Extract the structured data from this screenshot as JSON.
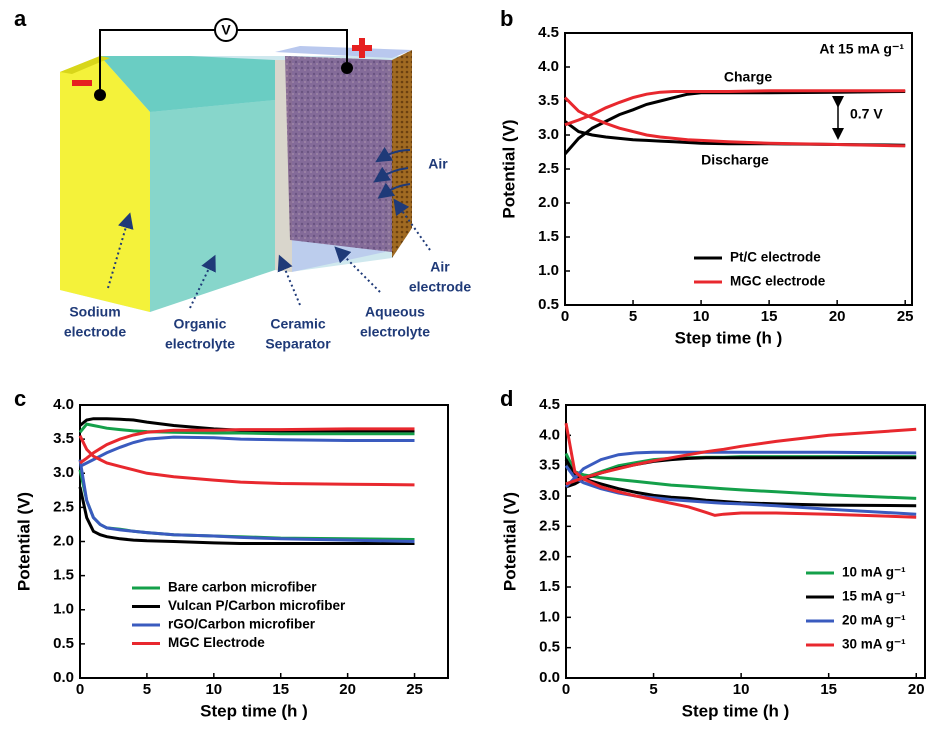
{
  "diagram": {
    "panel_label": "a",
    "voltmeter": "V",
    "labels": [
      {
        "lines": [
          "Sodium",
          "electrode"
        ]
      },
      {
        "lines": [
          "Organic",
          "electrolyte"
        ]
      },
      {
        "lines": [
          "Ceramic",
          "Separator"
        ]
      },
      {
        "lines": [
          "Aqueous",
          "electrolyte"
        ]
      },
      {
        "lines": [
          "Air",
          "electrode"
        ]
      },
      {
        "lines": [
          "Air"
        ]
      }
    ]
  },
  "chart_data": [
    {
      "type": "line",
      "panel_label": "b",
      "xlabel": "Step time (h )",
      "ylabel": "Potential (V)",
      "annotations": [
        "At 15 mA g⁻¹",
        "Charge",
        "Discharge",
        "0.7 V"
      ],
      "xlim": [
        0,
        25.5
      ],
      "xticks": [
        0,
        5,
        10,
        15,
        20,
        25
      ],
      "ylim": [
        0.5,
        4.5
      ],
      "yticks": [
        0.5,
        {
          "value": 1,
          "label": "1.0"
        },
        1.5,
        {
          "value": 2,
          "label": "2.0"
        },
        2.5,
        {
          "value": 3,
          "label": "3.0"
        },
        3.5,
        {
          "value": 4,
          "label": "4.0"
        },
        4.5
      ],
      "x": [
        0,
        1,
        2,
        3,
        4,
        5,
        6,
        7,
        8,
        9,
        10,
        12,
        15,
        20,
        25
      ],
      "series": [
        {
          "name": "Pt/C electrode",
          "color": "#000000",
          "values": [
            2.72,
            2.95,
            3.1,
            3.2,
            3.3,
            3.37,
            3.45,
            3.5,
            3.55,
            3.6,
            3.62,
            3.62,
            3.62,
            3.63,
            3.64
          ],
          "discharge": [
            3.2,
            3.05,
            3.0,
            2.97,
            2.95,
            2.93,
            2.92,
            2.91,
            2.9,
            2.89,
            2.88,
            2.87,
            2.87,
            2.86,
            2.85
          ]
        },
        {
          "name": "MGC electrode",
          "color": "#e8282e",
          "values": [
            3.15,
            3.22,
            3.3,
            3.4,
            3.48,
            3.55,
            3.6,
            3.63,
            3.64,
            3.64,
            3.64,
            3.64,
            3.65,
            3.65,
            3.65
          ],
          "discharge": [
            3.55,
            3.35,
            3.25,
            3.17,
            3.1,
            3.05,
            3.0,
            2.97,
            2.95,
            2.93,
            2.92,
            2.9,
            2.88,
            2.86,
            2.84
          ]
        }
      ]
    },
    {
      "type": "line",
      "panel_label": "c",
      "xlabel": "Step time (h )",
      "ylabel": "Potential (V)",
      "xlim": [
        0,
        27.5
      ],
      "xticks": [
        0,
        5,
        10,
        15,
        20,
        25
      ],
      "ylim": [
        0,
        4
      ],
      "yticks": [
        {
          "value": 0,
          "label": "0.0"
        },
        0.5,
        {
          "value": 1,
          "label": "1.0"
        },
        1.5,
        {
          "value": 2,
          "label": "2.0"
        },
        2.5,
        {
          "value": 3,
          "label": "3.0"
        },
        3.5,
        {
          "value": 4,
          "label": "4.0"
        }
      ],
      "x": [
        0,
        0.5,
        1,
        1.5,
        2,
        3,
        4,
        5,
        7,
        10,
        12,
        15,
        20,
        25
      ],
      "series": [
        {
          "name": "Bare carbon microfiber",
          "color": "#14a04a",
          "values": [
            3.6,
            3.72,
            3.7,
            3.68,
            3.66,
            3.64,
            3.62,
            3.61,
            3.6,
            3.59,
            3.59,
            3.58,
            3.58,
            3.58
          ],
          "discharge": [
            3.05,
            2.6,
            2.35,
            2.25,
            2.2,
            2.18,
            2.15,
            2.13,
            2.1,
            2.08,
            2.07,
            2.05,
            2.04,
            2.03
          ]
        },
        {
          "name": "Vulcan P/Carbon microfiber",
          "color": "#000000",
          "values": [
            3.7,
            3.78,
            3.8,
            3.8,
            3.8,
            3.79,
            3.78,
            3.75,
            3.7,
            3.65,
            3.63,
            3.62,
            3.62,
            3.62
          ],
          "discharge": [
            2.8,
            2.35,
            2.15,
            2.1,
            2.07,
            2.04,
            2.02,
            2.01,
            2.0,
            1.98,
            1.97,
            1.97,
            1.97,
            1.97
          ]
        },
        {
          "name": "rGO/Carbon microfiber",
          "color": "#3a5bbf",
          "values": [
            3.1,
            3.15,
            3.2,
            3.25,
            3.3,
            3.38,
            3.45,
            3.5,
            3.53,
            3.52,
            3.5,
            3.49,
            3.48,
            3.48
          ],
          "discharge": [
            3.2,
            2.6,
            2.35,
            2.25,
            2.2,
            2.17,
            2.15,
            2.13,
            2.1,
            2.08,
            2.06,
            2.04,
            2.02,
            2.0
          ]
        },
        {
          "name": "MGC Electrode",
          "color": "#e8282e",
          "values": [
            3.15,
            3.22,
            3.3,
            3.36,
            3.42,
            3.5,
            3.56,
            3.6,
            3.63,
            3.63,
            3.64,
            3.64,
            3.65,
            3.65
          ],
          "discharge": [
            3.55,
            3.35,
            3.25,
            3.2,
            3.15,
            3.1,
            3.05,
            3.0,
            2.95,
            2.9,
            2.87,
            2.85,
            2.84,
            2.83
          ]
        }
      ]
    },
    {
      "type": "line",
      "panel_label": "d",
      "xlabel": "Step time (h )",
      "ylabel": "Potential (V)",
      "xlim": [
        0,
        20.5
      ],
      "xticks": [
        0,
        5,
        10,
        15,
        20
      ],
      "ylim": [
        0,
        4.5
      ],
      "yticks": [
        {
          "value": 0,
          "label": "0.0"
        },
        0.5,
        {
          "value": 1,
          "label": "1.0"
        },
        1.5,
        {
          "value": 2,
          "label": "2.0"
        },
        2.5,
        {
          "value": 3,
          "label": "3.0"
        },
        3.5,
        {
          "value": 4,
          "label": "4.0"
        },
        4.5
      ],
      "x": [
        0,
        0.5,
        1,
        2,
        3,
        4,
        5,
        6,
        7,
        8,
        8.5,
        9,
        10,
        12,
        15,
        20
      ],
      "series": [
        {
          "name": "10 mA g⁻¹",
          "color": "#14a04a",
          "values": [
            3.2,
            3.25,
            3.3,
            3.4,
            3.5,
            3.55,
            3.6,
            3.62,
            3.63,
            3.64,
            3.64,
            3.64,
            3.65,
            3.65,
            3.65,
            3.65
          ],
          "discharge": [
            3.7,
            3.4,
            3.35,
            3.3,
            3.27,
            3.24,
            3.21,
            3.18,
            3.16,
            3.14,
            3.13,
            3.12,
            3.1,
            3.07,
            3.02,
            2.96
          ]
        },
        {
          "name": "15 mA g⁻¹",
          "color": "#000000",
          "values": [
            3.15,
            3.2,
            3.28,
            3.38,
            3.46,
            3.52,
            3.57,
            3.6,
            3.62,
            3.63,
            3.63,
            3.63,
            3.63,
            3.63,
            3.63,
            3.63
          ],
          "discharge": [
            3.6,
            3.35,
            3.28,
            3.2,
            3.12,
            3.06,
            3.01,
            2.98,
            2.96,
            2.93,
            2.92,
            2.91,
            2.89,
            2.87,
            2.85,
            2.84
          ]
        },
        {
          "name": "20 mA g⁻¹",
          "color": "#3a5bbf",
          "values": [
            3.15,
            3.3,
            3.45,
            3.6,
            3.68,
            3.71,
            3.72,
            3.72,
            3.72,
            3.72,
            3.72,
            3.72,
            3.72,
            3.72,
            3.72,
            3.71
          ],
          "discharge": [
            3.5,
            3.3,
            3.22,
            3.12,
            3.05,
            3.0,
            2.97,
            2.94,
            2.92,
            2.9,
            2.89,
            2.88,
            2.87,
            2.84,
            2.78,
            2.7
          ]
        },
        {
          "name": "30 mA g⁻¹",
          "color": "#e8282e",
          "values": [
            3.2,
            3.25,
            3.3,
            3.38,
            3.45,
            3.52,
            3.58,
            3.63,
            3.68,
            3.73,
            3.75,
            3.77,
            3.82,
            3.9,
            4.0,
            4.1
          ],
          "discharge": [
            4.2,
            3.4,
            3.28,
            3.15,
            3.07,
            3.0,
            2.94,
            2.88,
            2.82,
            2.73,
            2.68,
            2.7,
            2.72,
            2.72,
            2.7,
            2.65
          ]
        }
      ]
    }
  ]
}
